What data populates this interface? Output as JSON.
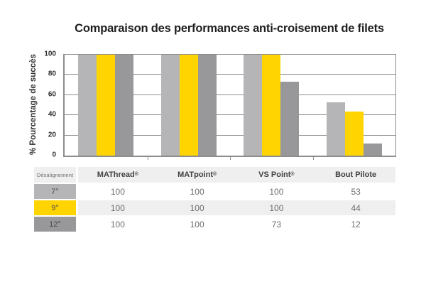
{
  "title": "Comparaison des performances anti-croisement de filets",
  "chart_data": {
    "type": "bar",
    "title": "Comparaison des performances anti-croisement de filets",
    "categories": [
      "MAThread®",
      "MATpoint®",
      "VS Point®",
      "Bout Pilote"
    ],
    "series": [
      {
        "name": "7°",
        "color": "#b5b5b7",
        "values": [
          100,
          100,
          100,
          53
        ]
      },
      {
        "name": "9°",
        "color": "#ffd400",
        "values": [
          100,
          100,
          100,
          44
        ]
      },
      {
        "name": "12°",
        "color": "#98989a",
        "values": [
          100,
          100,
          73,
          12
        ]
      }
    ],
    "ylabel": "% Pourcentage de succès",
    "yticks": [
      0,
      20,
      40,
      60,
      80,
      100
    ],
    "ylim": [
      0,
      100
    ],
    "grid": true,
    "legend": "none"
  },
  "table": {
    "header": {
      "misalignment_label": "Désalignement",
      "columns": [
        "MAThread®",
        "MATpoint®",
        "VS Point®",
        "Bout Pilote"
      ]
    },
    "rows": [
      {
        "label": "7°",
        "label_bg": "#b5b5b7",
        "values": [
          100,
          100,
          100,
          53
        ]
      },
      {
        "label": "9°",
        "label_bg": "#ffd400",
        "values": [
          100,
          100,
          100,
          44
        ]
      },
      {
        "label": "12°",
        "label_bg": "#98989a",
        "values": [
          100,
          100,
          73,
          12
        ]
      }
    ]
  },
  "colors": {
    "grid": "#8d8d8d",
    "axis": "#8d8d8d",
    "header_bg": "#efeff0",
    "row_alt_bg": "#efeff0",
    "row_bg": "#ffffff",
    "title_text": "#1f1f1f",
    "muted_text": "#6d6e71"
  }
}
